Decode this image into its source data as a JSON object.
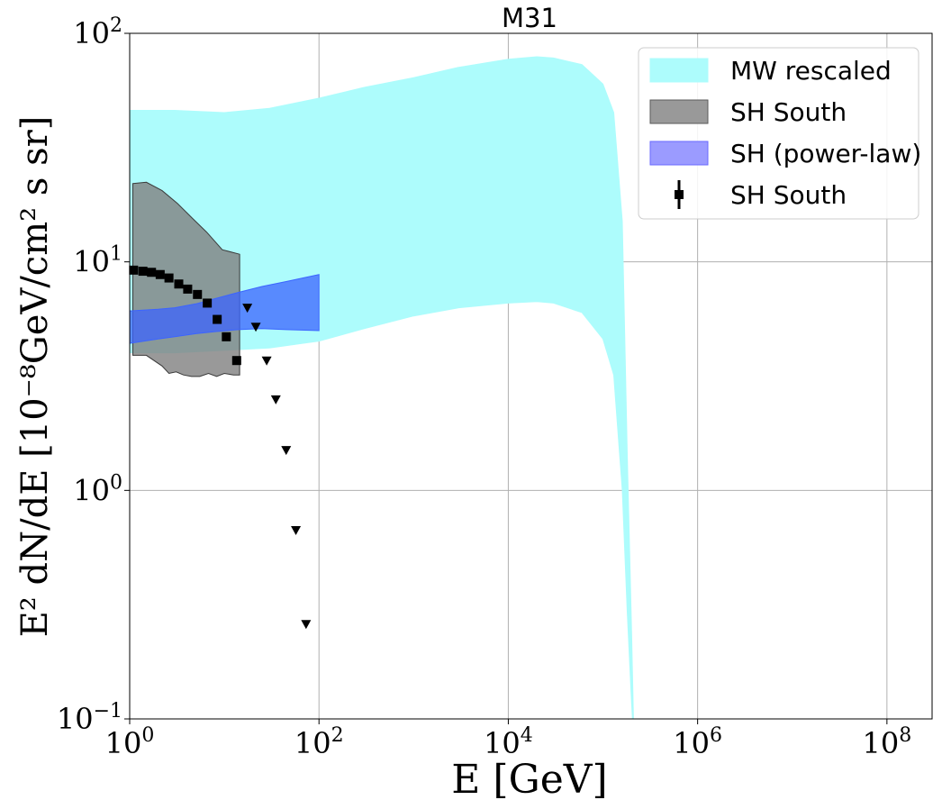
{
  "chart_data": {
    "type": "area",
    "title": "M31",
    "xlabel": "E [GeV]",
    "ylabel": "E² dN/dE [10⁻⁸GeV/cm² s sr]",
    "xscale": "log",
    "yscale": "log",
    "xlim": [
      1,
      300000000
    ],
    "ylim": [
      0.1,
      100
    ],
    "grid": true,
    "legend_position": "top-right",
    "x_ticks": [
      {
        "value": 1,
        "base": "10",
        "exp": "0"
      },
      {
        "value": 100,
        "base": "10",
        "exp": "2"
      },
      {
        "value": 10000,
        "base": "10",
        "exp": "4"
      },
      {
        "value": 1000000,
        "base": "10",
        "exp": "6"
      },
      {
        "value": 100000000,
        "base": "10",
        "exp": "8"
      }
    ],
    "y_ticks": [
      {
        "value": 0.1,
        "base": "10",
        "exp": "−1"
      },
      {
        "value": 1,
        "base": "10",
        "exp": "0"
      },
      {
        "value": 10,
        "base": "10",
        "exp": "1"
      },
      {
        "value": 100,
        "base": "10",
        "exp": "2"
      }
    ],
    "bands": [
      {
        "name": "MW rescaled",
        "color": "#adfcfc",
        "edge": "#adfcfc",
        "opacity": 1.0,
        "upper": [
          [
            1,
            46
          ],
          [
            3,
            46
          ],
          [
            10,
            45
          ],
          [
            30,
            47
          ],
          [
            100,
            52
          ],
          [
            300,
            58
          ],
          [
            1000,
            64
          ],
          [
            3000,
            71
          ],
          [
            10000,
            77
          ],
          [
            20000,
            79
          ],
          [
            30000,
            78
          ],
          [
            60000,
            73
          ],
          [
            100000,
            60
          ],
          [
            130000,
            45
          ],
          [
            160000,
            15
          ],
          [
            180000,
            1.5
          ],
          [
            200000,
            0.25
          ],
          [
            210000,
            0.09
          ]
        ],
        "lower": [
          [
            1,
            4.0
          ],
          [
            3,
            4.0
          ],
          [
            10,
            4.1
          ],
          [
            30,
            4.2
          ],
          [
            100,
            4.5
          ],
          [
            300,
            5.1
          ],
          [
            1000,
            5.8
          ],
          [
            3000,
            6.3
          ],
          [
            10000,
            6.6
          ],
          [
            20000,
            6.7
          ],
          [
            30000,
            6.6
          ],
          [
            60000,
            6.0
          ],
          [
            100000,
            4.6
          ],
          [
            130000,
            3.2
          ],
          [
            160000,
            1.0
          ],
          [
            180000,
            0.3
          ],
          [
            200000,
            0.12
          ],
          [
            205000,
            0.09
          ]
        ]
      },
      {
        "name": "SH South",
        "color": "#7f7f7f",
        "edge": "#3a3a3a",
        "opacity": 0.8,
        "upper": [
          [
            1.08,
            22
          ],
          [
            1.5,
            22.3
          ],
          [
            2.2,
            20.5
          ],
          [
            3.2,
            18
          ],
          [
            4.6,
            15.5
          ],
          [
            6.5,
            13.5
          ],
          [
            9.5,
            11.3
          ],
          [
            14.5,
            10.8
          ]
        ],
        "lower": [
          [
            1.08,
            3.9
          ],
          [
            1.5,
            3.9
          ],
          [
            2.2,
            3.5
          ],
          [
            2.6,
            3.25
          ],
          [
            3.1,
            3.3
          ],
          [
            3.7,
            3.2
          ],
          [
            4.5,
            3.15
          ],
          [
            5.5,
            3.15
          ],
          [
            6.8,
            3.25
          ],
          [
            8.3,
            3.15
          ],
          [
            10,
            3.25
          ],
          [
            12.5,
            3.2
          ],
          [
            14.5,
            3.2
          ]
        ]
      },
      {
        "name": "SH (power-law)",
        "color": "#3c64ff",
        "edge": "#3c64ff",
        "opacity": 0.75,
        "upper": [
          [
            1,
            6.1
          ],
          [
            2,
            6.2
          ],
          [
            3,
            6.3
          ],
          [
            5,
            6.55
          ],
          [
            8,
            6.9
          ],
          [
            14,
            7.35
          ],
          [
            25,
            7.8
          ],
          [
            45,
            8.2
          ],
          [
            100,
            8.8
          ]
        ],
        "lower": [
          [
            1,
            4.4
          ],
          [
            2,
            4.6
          ],
          [
            3,
            4.7
          ],
          [
            5,
            4.85
          ],
          [
            8,
            4.95
          ],
          [
            14,
            5.05
          ],
          [
            25,
            5.1
          ],
          [
            45,
            5.05
          ],
          [
            100,
            5.0
          ]
        ]
      }
    ],
    "points": {
      "name": "SH South",
      "color": "#000000",
      "values": [
        [
          1.1,
          9.2
        ],
        [
          1.38,
          9.1
        ],
        [
          1.7,
          9.0
        ],
        [
          2.1,
          8.8
        ],
        [
          2.6,
          8.5
        ],
        [
          3.3,
          8.0
        ],
        [
          4.1,
          7.6
        ],
        [
          5.2,
          7.2
        ],
        [
          6.6,
          6.6
        ],
        [
          8.4,
          5.6
        ],
        [
          10.5,
          4.7
        ],
        [
          13.5,
          3.7
        ]
      ]
    },
    "upper_limits": {
      "color": "#000000",
      "values": [
        [
          17.5,
          6.3
        ],
        [
          21.5,
          5.2
        ],
        [
          28,
          3.7
        ],
        [
          35,
          2.5
        ],
        [
          45,
          1.5
        ],
        [
          57,
          0.67
        ],
        [
          73,
          0.26
        ]
      ]
    },
    "legend": [
      {
        "label": "MW rescaled",
        "kind": "patch",
        "color": "#adfcfc",
        "edge": "#adfcfc"
      },
      {
        "label": "SH South",
        "kind": "patch",
        "color": "#999999",
        "edge": "#5a5a5a"
      },
      {
        "label": "SH (power-law)",
        "kind": "patch",
        "color": "#9b9bff",
        "edge": "#6a6aff"
      },
      {
        "label": "SH South",
        "kind": "errorbar",
        "color": "#000000"
      }
    ]
  }
}
